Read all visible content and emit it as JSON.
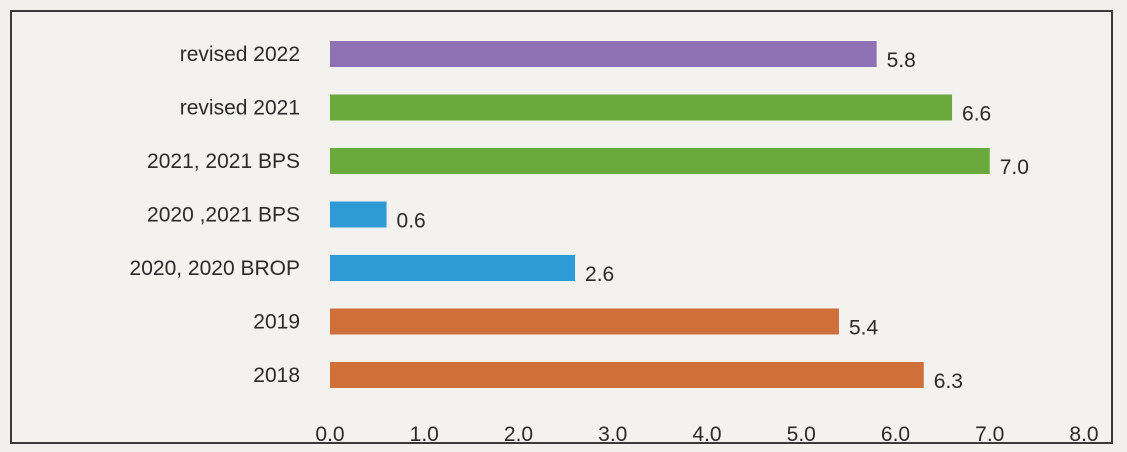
{
  "chart_data": {
    "type": "bar",
    "orientation": "horizontal",
    "categories": [
      "revised 2022",
      "revised 2021",
      "2021,  2021 BPS",
      "2020 ,2021  BPS",
      "2020, 2020  BROP",
      "2019",
      "2018"
    ],
    "values": [
      5.8,
      6.6,
      7.0,
      0.6,
      2.6,
      5.4,
      6.3
    ],
    "value_labels": [
      "5.8",
      "6.6",
      "7.0",
      "0.6",
      "2.6",
      "5.4",
      "6.3"
    ],
    "bar_colors": [
      "#8e72b4",
      "#6aaa3c",
      "#6aaa3c",
      "#2e9bd6",
      "#2e9bd6",
      "#cf6f3a",
      "#cf6f3a"
    ],
    "xlim": [
      0,
      8
    ],
    "xticks": [
      "0.0",
      "1.0",
      "2.0",
      "3.0",
      "4.0",
      "5.0",
      "6.0",
      "7.0",
      "8.0"
    ],
    "grid": false,
    "legend": "none"
  }
}
